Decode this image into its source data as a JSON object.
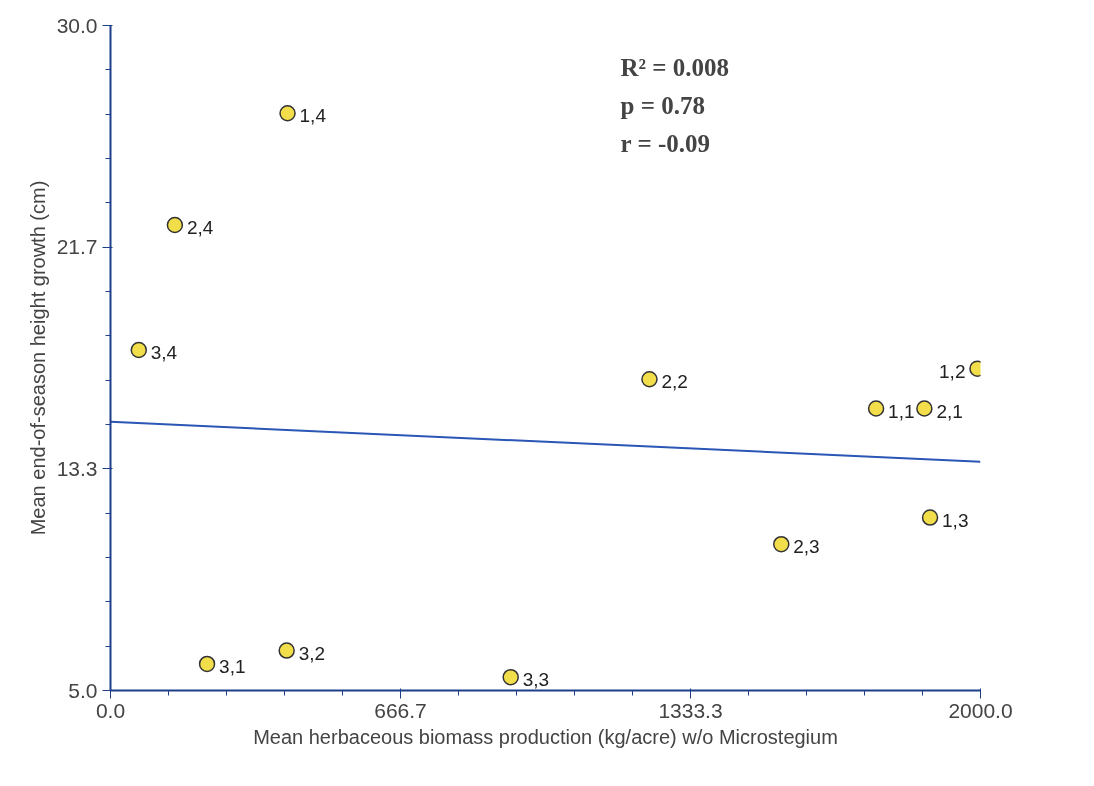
{
  "chart_data": {
    "type": "scatter",
    "xlabel": "Mean herbaceous biomass production (kg/acre) w/o Microstegium",
    "ylabel": "Mean end-of-season height growth (cm)",
    "xlim": [
      0,
      2000
    ],
    "xticks": [
      {
        "value": 0,
        "label": "0.0"
      },
      {
        "value": 666.67,
        "label": "666.7"
      },
      {
        "value": 1333.33,
        "label": "1333.3"
      },
      {
        "value": 2000,
        "label": "2000.0"
      }
    ],
    "ylim": [
      5,
      30
    ],
    "yticks": [
      {
        "value": 5,
        "label": "5.0"
      },
      {
        "value": 13.33,
        "label": "13.3"
      },
      {
        "value": 21.67,
        "label": "21.7"
      },
      {
        "value": 30,
        "label": "30.0"
      }
    ],
    "grid": false,
    "series": [
      {
        "marker": "circle",
        "color": "#f2dd4b",
        "x": [
          407,
          148,
          65,
          1239,
          1993,
          1760,
          1871,
          1884,
          1542,
          222,
          405,
          920
        ],
        "values": [
          26.7,
          22.5,
          17.8,
          16.7,
          17.1,
          15.6,
          15.6,
          11.5,
          10.5,
          6.0,
          6.5,
          5.5
        ]
      },
      {
        "type": "line",
        "color": "#2a56b5",
        "x": [
          0,
          2000
        ],
        "values": [
          15.1,
          13.6
        ]
      }
    ],
    "annotations": [
      "R² = 0.008",
      "p = 0.78",
      "r = -0.09",
      {
        "text": "1,4",
        "x": 407,
        "y": 26.7
      },
      {
        "text": "2,4",
        "x": 148,
        "y": 22.5
      },
      {
        "text": "3,4",
        "x": 65,
        "y": 17.8
      },
      {
        "text": "2,2",
        "x": 1239,
        "y": 16.7
      },
      {
        "text": "1,2",
        "x": 1993,
        "y": 17.1
      },
      {
        "text": "1,1",
        "x": 1760,
        "y": 15.6
      },
      {
        "text": "2,1",
        "x": 1871,
        "y": 15.6
      },
      {
        "text": "1,3",
        "x": 1884,
        "y": 11.5
      },
      {
        "text": "2,3",
        "x": 1542,
        "y": 10.5
      },
      {
        "text": "3,1",
        "x": 222,
        "y": 6.0
      },
      {
        "text": "3,2",
        "x": 405,
        "y": 6.5
      },
      {
        "text": "3,3",
        "x": 920,
        "y": 5.5
      }
    ]
  }
}
